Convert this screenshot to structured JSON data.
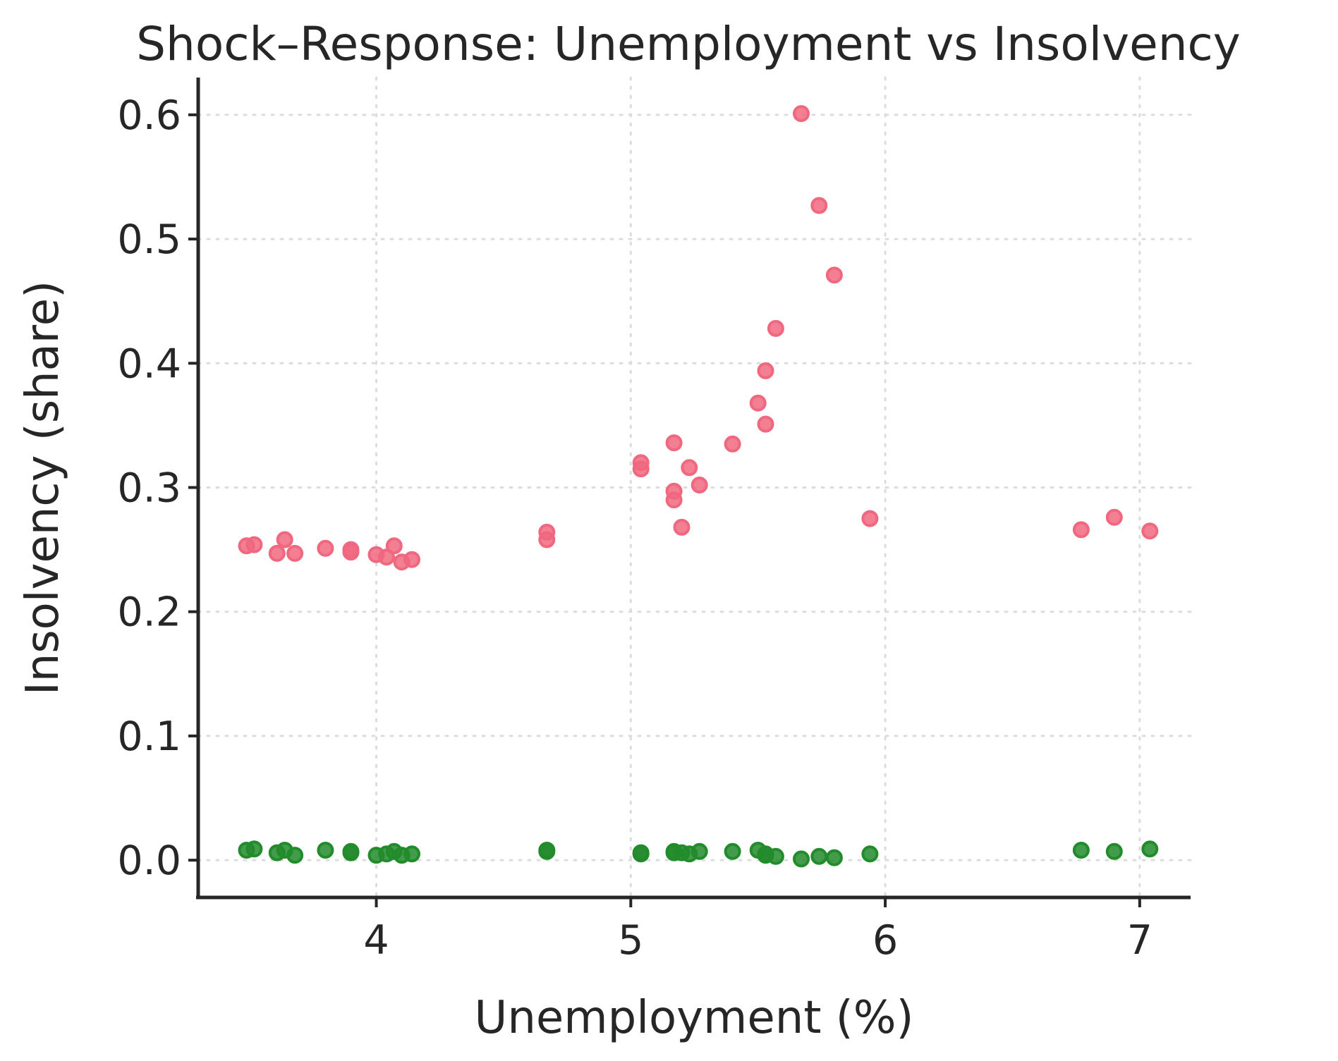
{
  "chart_data": {
    "type": "scatter",
    "title": "Shock–Response: Unemployment vs Insolvency",
    "xlabel": "Unemployment (%)",
    "ylabel": "Insolvency (share)",
    "xlim": [
      3.3,
      7.2
    ],
    "ylim": [
      -0.03,
      0.63
    ],
    "xticks": [
      4,
      5,
      6,
      7
    ],
    "yticks": [
      0.0,
      0.1,
      0.2,
      0.3,
      0.4,
      0.5,
      0.6
    ],
    "xtick_labels": [
      "4",
      "5",
      "6",
      "7"
    ],
    "ytick_labels": [
      "0.0",
      "0.1",
      "0.2",
      "0.3",
      "0.4",
      "0.5",
      "0.6"
    ],
    "grid": true,
    "legend": "none",
    "series": [
      {
        "color": "#f0687f",
        "points": [
          {
            "x": 3.49,
            "y": 0.253
          },
          {
            "x": 3.52,
            "y": 0.254
          },
          {
            "x": 3.61,
            "y": 0.247
          },
          {
            "x": 3.64,
            "y": 0.258
          },
          {
            "x": 3.68,
            "y": 0.247
          },
          {
            "x": 3.8,
            "y": 0.251
          },
          {
            "x": 3.9,
            "y": 0.25
          },
          {
            "x": 3.9,
            "y": 0.248
          },
          {
            "x": 4.0,
            "y": 0.246
          },
          {
            "x": 4.04,
            "y": 0.244
          },
          {
            "x": 4.07,
            "y": 0.253
          },
          {
            "x": 4.1,
            "y": 0.24
          },
          {
            "x": 4.14,
            "y": 0.242
          },
          {
            "x": 4.67,
            "y": 0.264
          },
          {
            "x": 4.67,
            "y": 0.258
          },
          {
            "x": 5.04,
            "y": 0.32
          },
          {
            "x": 5.04,
            "y": 0.315
          },
          {
            "x": 5.17,
            "y": 0.336
          },
          {
            "x": 5.17,
            "y": 0.297
          },
          {
            "x": 5.17,
            "y": 0.29
          },
          {
            "x": 5.2,
            "y": 0.268
          },
          {
            "x": 5.23,
            "y": 0.316
          },
          {
            "x": 5.27,
            "y": 0.302
          },
          {
            "x": 5.4,
            "y": 0.335
          },
          {
            "x": 5.5,
            "y": 0.368
          },
          {
            "x": 5.53,
            "y": 0.394
          },
          {
            "x": 5.53,
            "y": 0.351
          },
          {
            "x": 5.57,
            "y": 0.428
          },
          {
            "x": 5.67,
            "y": 0.601
          },
          {
            "x": 5.74,
            "y": 0.527
          },
          {
            "x": 5.8,
            "y": 0.471
          },
          {
            "x": 5.94,
            "y": 0.275
          },
          {
            "x": 6.77,
            "y": 0.266
          },
          {
            "x": 6.9,
            "y": 0.276
          },
          {
            "x": 7.04,
            "y": 0.265
          }
        ]
      },
      {
        "color": "#228b2b",
        "points": [
          {
            "x": 3.49,
            "y": 0.008
          },
          {
            "x": 3.52,
            "y": 0.009
          },
          {
            "x": 3.61,
            "y": 0.006
          },
          {
            "x": 3.64,
            "y": 0.008
          },
          {
            "x": 3.68,
            "y": 0.004
          },
          {
            "x": 3.8,
            "y": 0.008
          },
          {
            "x": 3.9,
            "y": 0.007
          },
          {
            "x": 3.9,
            "y": 0.006
          },
          {
            "x": 4.0,
            "y": 0.004
          },
          {
            "x": 4.04,
            "y": 0.005
          },
          {
            "x": 4.07,
            "y": 0.007
          },
          {
            "x": 4.1,
            "y": 0.004
          },
          {
            "x": 4.14,
            "y": 0.005
          },
          {
            "x": 4.67,
            "y": 0.008
          },
          {
            "x": 4.67,
            "y": 0.007
          },
          {
            "x": 5.04,
            "y": 0.006
          },
          {
            "x": 5.04,
            "y": 0.005
          },
          {
            "x": 5.17,
            "y": 0.007
          },
          {
            "x": 5.17,
            "y": 0.006
          },
          {
            "x": 5.2,
            "y": 0.006
          },
          {
            "x": 5.23,
            "y": 0.005
          },
          {
            "x": 5.27,
            "y": 0.007
          },
          {
            "x": 5.4,
            "y": 0.007
          },
          {
            "x": 5.5,
            "y": 0.008
          },
          {
            "x": 5.53,
            "y": 0.005
          },
          {
            "x": 5.53,
            "y": 0.004
          },
          {
            "x": 5.57,
            "y": 0.003
          },
          {
            "x": 5.67,
            "y": 0.001
          },
          {
            "x": 5.74,
            "y": 0.003
          },
          {
            "x": 5.8,
            "y": 0.002
          },
          {
            "x": 5.94,
            "y": 0.005
          },
          {
            "x": 6.77,
            "y": 0.008
          },
          {
            "x": 6.9,
            "y": 0.007
          },
          {
            "x": 7.04,
            "y": 0.009
          }
        ]
      }
    ]
  }
}
